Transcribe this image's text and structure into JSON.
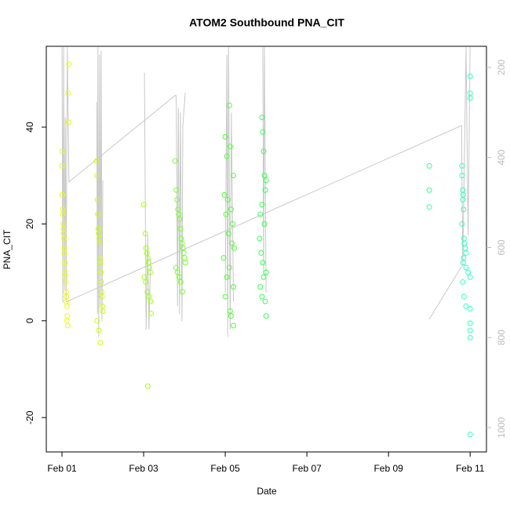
{
  "chart_data": {
    "type": "scatter",
    "title": "ATOM2 Southbound PNA_CIT",
    "x_label": "Date",
    "y_label": "PNA_CIT",
    "xlim": [
      0.615,
      11.4
    ],
    "xticks": [
      {
        "value": 1,
        "label": "Feb 01"
      },
      {
        "value": 3,
        "label": "Feb 03"
      },
      {
        "value": 5,
        "label": "Feb 05"
      },
      {
        "value": 7,
        "label": "Feb 07"
      },
      {
        "value": 9,
        "label": "Feb 09"
      },
      {
        "value": 11,
        "label": "Feb 11"
      }
    ],
    "ylim": [
      -27.1,
      56.7
    ],
    "yticks": [
      -20,
      0,
      20,
      40
    ],
    "y2lim": [
      1054,
      153
    ],
    "y2ticks": [
      200,
      400,
      600,
      800,
      1000
    ],
    "series": [
      {
        "color": "#e8ff00",
        "x": [
          1.0,
          1.01,
          1.02,
          1.03,
          1.04,
          1.05,
          1.06,
          1.07,
          1.08,
          1.09,
          1.1,
          1.11,
          1.12,
          1.13,
          1.14,
          1.15,
          1.16,
          1.17,
          1.0,
          1.02,
          1.04,
          1.06,
          1.08,
          1.1,
          1.12
        ],
        "values": [
          35,
          26,
          23,
          20,
          18,
          17,
          15,
          12,
          10,
          8,
          6,
          5,
          3,
          1,
          -1,
          47,
          41,
          53,
          32,
          22,
          19,
          14,
          9,
          4,
          0
        ]
      },
      {
        "color": "#ccff00",
        "x": [
          1.85,
          1.86,
          1.87,
          1.88,
          1.89,
          1.9,
          1.91,
          1.92,
          1.93,
          1.94,
          1.95,
          1.96,
          1.97,
          1.98,
          1.99,
          2.0,
          1.86,
          1.9,
          1.94
        ],
        "values": [
          33,
          30,
          25,
          22,
          19,
          18,
          17,
          16,
          13,
          12,
          10,
          8,
          6,
          5,
          3,
          2,
          0,
          -2,
          -4.5
        ]
      },
      {
        "color": "#a3ff1a",
        "x": [
          3.0,
          3.04,
          3.06,
          3.08,
          3.1,
          3.12,
          3.14,
          3.16,
          3.02,
          3.05,
          3.09,
          3.13,
          3.17,
          3.18,
          3.1
        ],
        "values": [
          24,
          18,
          15,
          14,
          13,
          12,
          11,
          10,
          9,
          8,
          6,
          5,
          4,
          1.5,
          -13.5
        ]
      },
      {
        "color": "#7aff33",
        "x": [
          3.77,
          3.8,
          3.82,
          3.84,
          3.86,
          3.88,
          3.9,
          3.92,
          3.94,
          3.96,
          3.98,
          4.0,
          4.02,
          3.79,
          3.83,
          3.87,
          3.91,
          3.95
        ],
        "values": [
          33,
          27,
          25,
          23,
          22,
          21,
          19,
          17,
          16,
          15,
          14,
          13,
          12,
          11,
          10,
          9,
          8,
          6
        ]
      },
      {
        "color": "#4dff33",
        "x": [
          5.1,
          5.0,
          5.12,
          5.04,
          5.2,
          4.98,
          5.06,
          5.14,
          5.02,
          5.18,
          5.08,
          5.16,
          5.22,
          4.96,
          5.1,
          5.04,
          5.2,
          5.0,
          5.12,
          5.14,
          5.2
        ],
        "values": [
          44.5,
          38,
          36,
          34,
          30,
          26,
          25,
          23,
          22,
          20,
          18,
          16,
          15,
          13,
          11,
          9,
          7,
          5,
          2,
          1,
          -1
        ]
      },
      {
        "color": "#33ff55",
        "x": [
          5.9,
          5.92,
          5.94,
          5.96,
          6.0,
          5.98,
          5.9,
          5.86,
          5.96,
          5.84,
          5.88,
          5.92,
          6.0,
          5.94,
          5.86,
          5.9,
          5.98,
          6.0
        ],
        "values": [
          42,
          39,
          35,
          30,
          29,
          27,
          24,
          22,
          20,
          17,
          14,
          12,
          10,
          9,
          7,
          5,
          4,
          1
        ]
      },
      {
        "color": "#33ff99",
        "x": [
          10.0,
          10.0,
          10.0
        ],
        "values": [
          32,
          27,
          23.5
        ]
      },
      {
        "color": "#33ffc4",
        "x": [
          11.0,
          11.0,
          11.0,
          10.8,
          10.8,
          10.82,
          10.83,
          10.82,
          10.84,
          10.8,
          10.85,
          10.86,
          10.88,
          10.9,
          10.84,
          10.83,
          10.9,
          10.95,
          11.0,
          10.82,
          10.85,
          10.9,
          11.0,
          11.0,
          11.0,
          11.0,
          11.0
        ],
        "values": [
          50.5,
          47,
          46,
          32,
          30,
          27,
          26,
          25,
          23,
          20,
          17,
          16,
          15,
          14,
          13,
          12,
          11,
          10,
          9,
          8,
          5,
          3,
          2.5,
          -0.5,
          -2,
          -3.5,
          -23.5
        ]
      },
      {
        "type": "line",
        "axis": "y2",
        "color": "#c8c8c8",
        "x": [
          1.0,
          1.02,
          1.04,
          1.06,
          1.08,
          1.1,
          1.13,
          1.17,
          3.79,
          null,
          1.85,
          1.87,
          1.88,
          1.9,
          1.92,
          1.94,
          1.96,
          1.98,
          2.0,
          null,
          3.02,
          3.06,
          3.1,
          3.13,
          3.17,
          null,
          3.79,
          3.8,
          3.83,
          3.85,
          3.88,
          3.9,
          3.94,
          3.96,
          4.02,
          null,
          5.0,
          5.04,
          5.06,
          5.08,
          5.12,
          5.15,
          5.2,
          null,
          5.92,
          5.94,
          5.96,
          6.0,
          null,
          1.1,
          10.79,
          10.82,
          10.9,
          10.95,
          11.0,
          null,
          10.0,
          10.79
        ],
        "values": [
          155,
          721,
          155,
          695,
          311,
          721,
          155,
          454,
          261,
          null,
          277,
          747,
          155,
          799,
          172,
          730,
          163,
          764,
          451,
          null,
          212,
          782,
          573,
          782,
          625,
          null,
          261,
          277,
          730,
          290,
          747,
          300,
          764,
          330,
          256,
          null,
          700,
          172,
          799,
          155,
          782,
          300,
          720,
          null,
          155,
          660,
          155,
          700,
          null,
          721,
          329,
          642,
          155,
          573,
          155,
          null,
          759,
          642
        ]
      }
    ]
  }
}
